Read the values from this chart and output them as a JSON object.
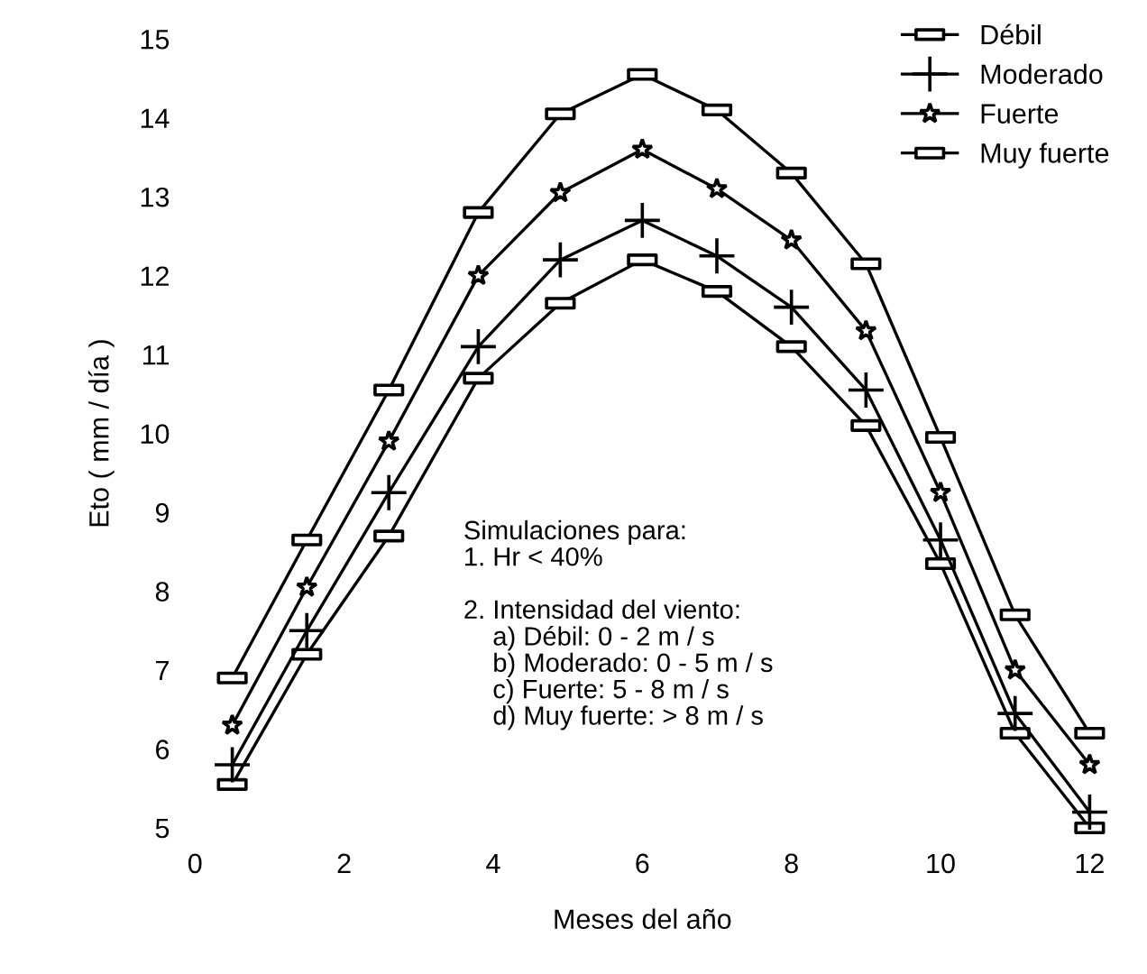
{
  "chart_data": {
    "type": "line",
    "xlabel": "Meses del año",
    "ylabel": "Eto ( mm / día )",
    "x": [
      0.5,
      1.5,
      2.6,
      3.8,
      4.9,
      6,
      7,
      8,
      9,
      10,
      11,
      12
    ],
    "series": [
      {
        "name": "Débil",
        "color": "#000000",
        "marker": "square",
        "values": [
          5.55,
          7.2,
          8.7,
          10.7,
          11.65,
          12.2,
          11.8,
          11.1,
          10.1,
          8.35,
          6.2,
          5.0
        ]
      },
      {
        "name": "Moderado",
        "color": "#000000",
        "marker": "cross",
        "values": [
          5.8,
          7.5,
          9.25,
          11.1,
          12.2,
          12.7,
          12.25,
          11.6,
          10.55,
          8.65,
          6.45,
          5.2
        ]
      },
      {
        "name": "Fuerte",
        "color": "#000000",
        "marker": "star",
        "values": [
          6.3,
          8.05,
          9.9,
          12.0,
          13.05,
          13.6,
          13.1,
          12.45,
          11.3,
          9.25,
          7.0,
          5.8
        ]
      },
      {
        "name": "Muy fuerte",
        "color": "#000000",
        "marker": "square",
        "values": [
          6.9,
          8.65,
          10.55,
          12.8,
          14.05,
          14.55,
          14.1,
          13.3,
          12.15,
          9.95,
          7.7,
          6.2
        ]
      }
    ],
    "xlim": [
      0,
      12
    ],
    "ylim": [
      5,
      15
    ],
    "xticks": [
      0,
      2,
      4,
      6,
      8,
      10,
      12
    ],
    "yticks": [
      5,
      6,
      7,
      8,
      9,
      10,
      11,
      12,
      13,
      14,
      15
    ],
    "grid": false,
    "legend": "top right",
    "line_style": "solid",
    "annotations": [
      "Simulaciones para:\n1. Hr < 40%\n\n2. Intensidad del viento:\n    a) Débil: 0 - 2 m / s\n    b) Moderado: 0 - 5 m / s\n    c) Fuerte: 5 - 8 m / s\n    d) Muy fuerte: > 8 m / s"
    ]
  }
}
